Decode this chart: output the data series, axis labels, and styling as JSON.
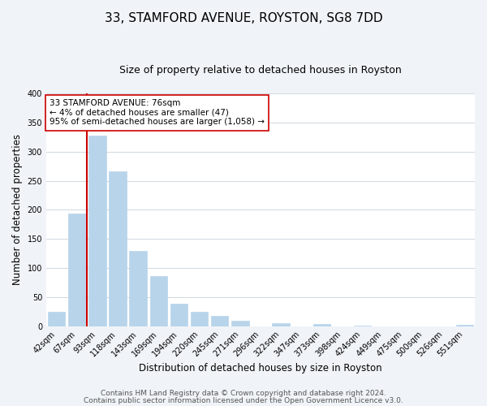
{
  "title": "33, STAMFORD AVENUE, ROYSTON, SG8 7DD",
  "subtitle": "Size of property relative to detached houses in Royston",
  "xlabel": "Distribution of detached houses by size in Royston",
  "ylabel": "Number of detached properties",
  "bar_color": "#b8d4ea",
  "categories": [
    "42sqm",
    "67sqm",
    "93sqm",
    "118sqm",
    "143sqm",
    "169sqm",
    "194sqm",
    "220sqm",
    "245sqm",
    "271sqm",
    "296sqm",
    "322sqm",
    "347sqm",
    "373sqm",
    "398sqm",
    "424sqm",
    "449sqm",
    "475sqm",
    "500sqm",
    "526sqm",
    "551sqm"
  ],
  "values": [
    25,
    193,
    328,
    266,
    130,
    86,
    38,
    25,
    17,
    9,
    0,
    5,
    0,
    4,
    0,
    1,
    0,
    0,
    0,
    0,
    2
  ],
  "ylim": [
    0,
    400
  ],
  "yticks": [
    0,
    50,
    100,
    150,
    200,
    250,
    300,
    350,
    400
  ],
  "property_line_color": "#cc0000",
  "annotation_text": "33 STAMFORD AVENUE: 76sqm\n← 4% of detached houses are smaller (47)\n95% of semi-detached houses are larger (1,058) →",
  "annotation_box_color": "#ffffff",
  "annotation_box_edge_color": "#cc0000",
  "footer_line1": "Contains HM Land Registry data © Crown copyright and database right 2024.",
  "footer_line2": "Contains public sector information licensed under the Open Government Licence v3.0.",
  "background_color": "#f0f4f8",
  "plot_background_color": "#ffffff",
  "grid_color": "#d0d8e0",
  "title_fontsize": 11,
  "subtitle_fontsize": 9,
  "axis_label_fontsize": 8.5,
  "tick_fontsize": 7,
  "footer_fontsize": 6.5
}
